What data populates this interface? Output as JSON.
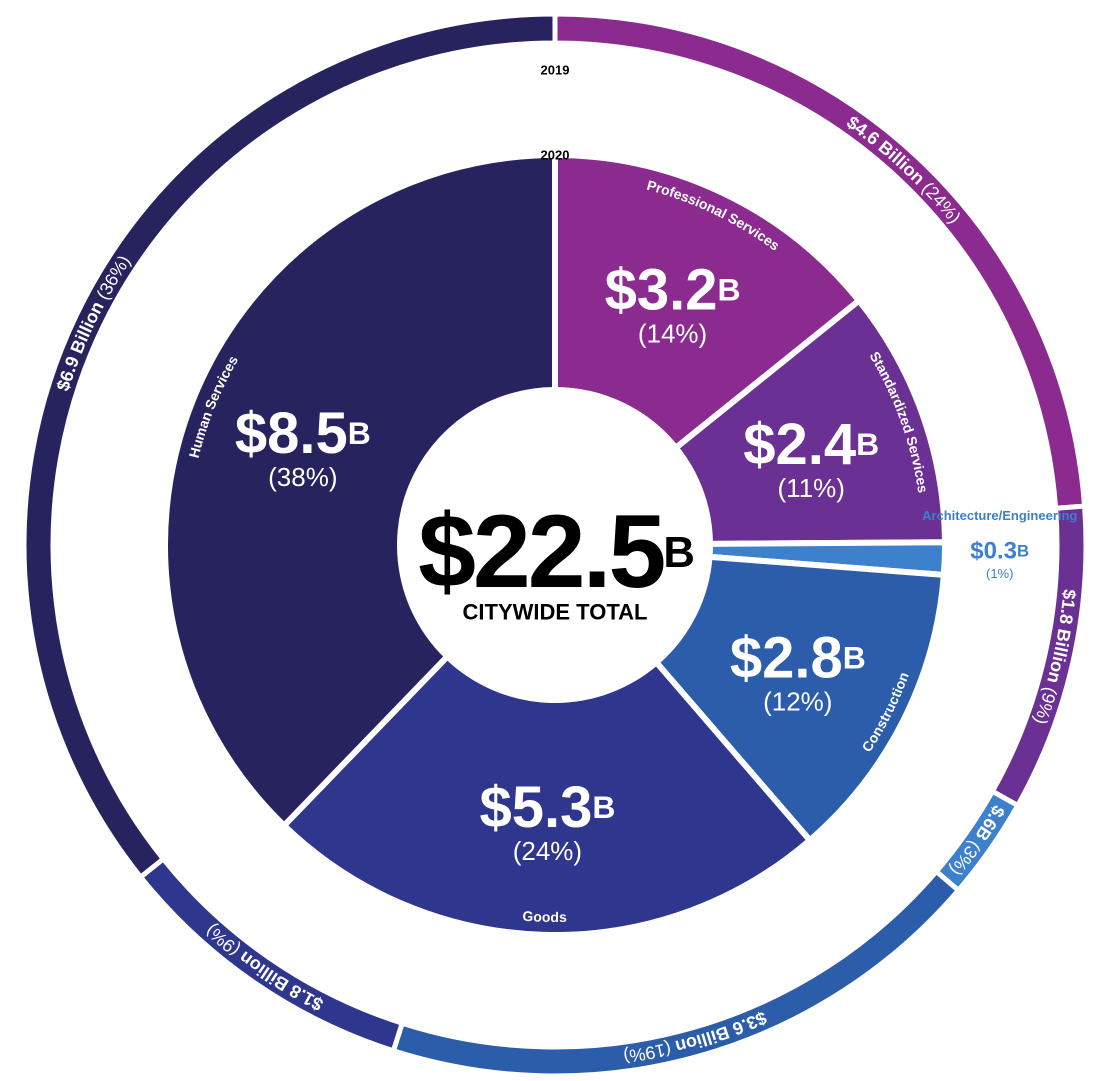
{
  "chart_data": {
    "type": "donut",
    "total_label": "$22.5B",
    "total_caption": "CITYWIDE TOTAL",
    "categories": [
      "Professional Services",
      "Standardized Services",
      "Architecture/Engineering",
      "Construction",
      "Goods",
      "Human Services"
    ],
    "colors": [
      "#8b2a8f",
      "#6b3093",
      "#3d80cc",
      "#2b5dab",
      "#2f368d",
      "#27235f"
    ],
    "series": [
      {
        "name": "2019",
        "values": [
          4.6,
          1.8,
          0.6,
          3.6,
          1.8,
          6.9
        ],
        "value_labels": [
          "$4.6 Billion",
          "$1.8 Billion",
          "$.6B",
          "$3.6 Billion",
          "$1.8 Billion",
          "$6.9 Billion"
        ],
        "percent_labels": [
          "(24%)",
          "(9%)",
          "(3%)",
          "(19%)",
          "(9%)",
          "(36%)"
        ]
      },
      {
        "name": "2020",
        "values": [
          3.2,
          2.4,
          0.3,
          2.8,
          5.3,
          8.5
        ],
        "value_labels": [
          "$3.2B",
          "$2.4B",
          "$0.3B",
          "$2.8B",
          "$5.3B",
          "$8.5B"
        ],
        "percent_labels": [
          "(14%)",
          "(11%)",
          "(1%)",
          "(12%)",
          "(24%)",
          "(38%)"
        ]
      }
    ]
  }
}
